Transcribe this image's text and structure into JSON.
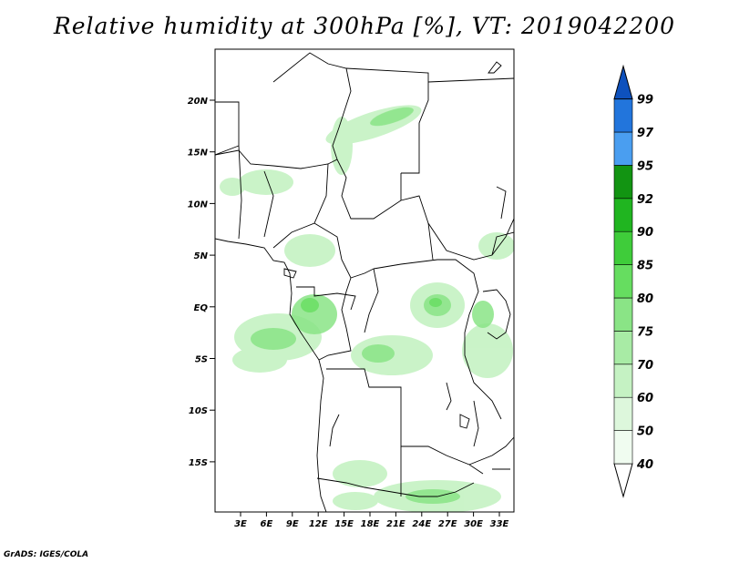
{
  "title": "Relative humidity at 300hPa [%], VT: 2019042200",
  "credit": "GrADS: IGES/COLA",
  "map": {
    "lon_ticks": [
      "3E",
      "6E",
      "9E",
      "12E",
      "15E",
      "18E",
      "21E",
      "24E",
      "27E",
      "30E",
      "33E"
    ],
    "lat_ticks": [
      "20N",
      "15N",
      "10N",
      "5N",
      "EQ",
      "5S",
      "10S",
      "15S"
    ]
  },
  "colorbar": {
    "levels": [
      "40",
      "50",
      "60",
      "70",
      "75",
      "80",
      "85",
      "90",
      "92",
      "95",
      "97",
      "99"
    ],
    "colors": {
      "below_40": "#ffffff",
      "40_50": "#f0fcf0",
      "50_60": "#ddf7dc",
      "60_70": "#c5f2c3",
      "70_75": "#a8eba5",
      "75_80": "#8ae486",
      "80_85": "#66dd60",
      "85_90": "#3fcc3a",
      "90_92": "#20b520",
      "92_95": "#129412",
      "95_97": "#4a9ef0",
      "97_99": "#2275dc",
      "above_99": "#0e51bd"
    }
  }
}
